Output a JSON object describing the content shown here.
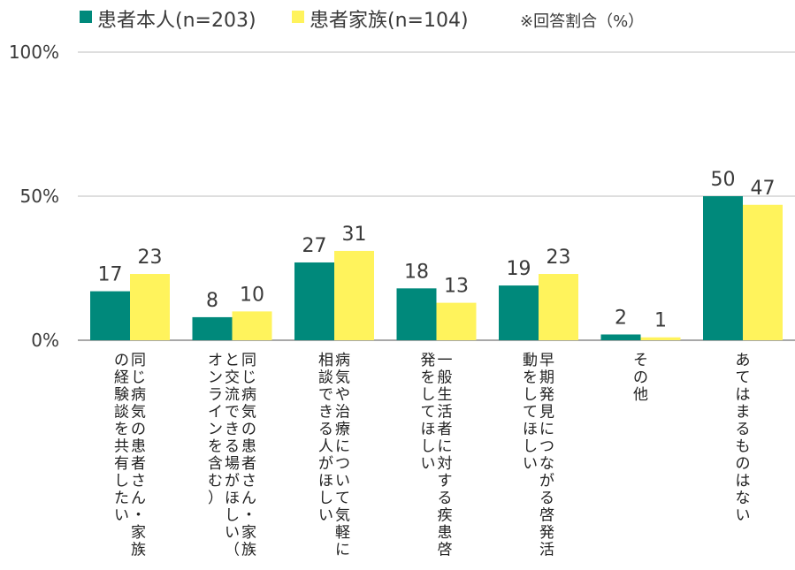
{
  "chart_data": {
    "type": "bar",
    "note": "※回答割合（%）",
    "colors": {
      "series_1": "#00897B",
      "series_2": "#FFF35C",
      "axis": "#8C8C8C",
      "grid": "#BDBDBD"
    },
    "ylim": [
      0,
      100
    ],
    "yticks": [
      {
        "value": 0,
        "label": "0%"
      },
      {
        "value": 50,
        "label": "50%"
      },
      {
        "value": 100,
        "label": "100%"
      }
    ],
    "grid": true,
    "legend_position": "top-left",
    "categories": [
      "同じ病気の患者さん・家族の経験談を共有したい",
      "同じ病気の患者さん・家族と交流できる場がほしい（オンラインを含む）",
      "病気や治療について気軽に相談できる人がほしい",
      "一般生活者に対する疾患啓発をしてほしい",
      "早期発見につながる啓発活動をしてほしい",
      "その他",
      "あてはまるものはない"
    ],
    "series": [
      {
        "name": "患者本人(n=203)",
        "values": [
          17,
          8,
          27,
          18,
          19,
          2,
          50
        ]
      },
      {
        "name": "患者家族(n=104)",
        "values": [
          23,
          10,
          31,
          13,
          23,
          1,
          47
        ]
      }
    ]
  }
}
